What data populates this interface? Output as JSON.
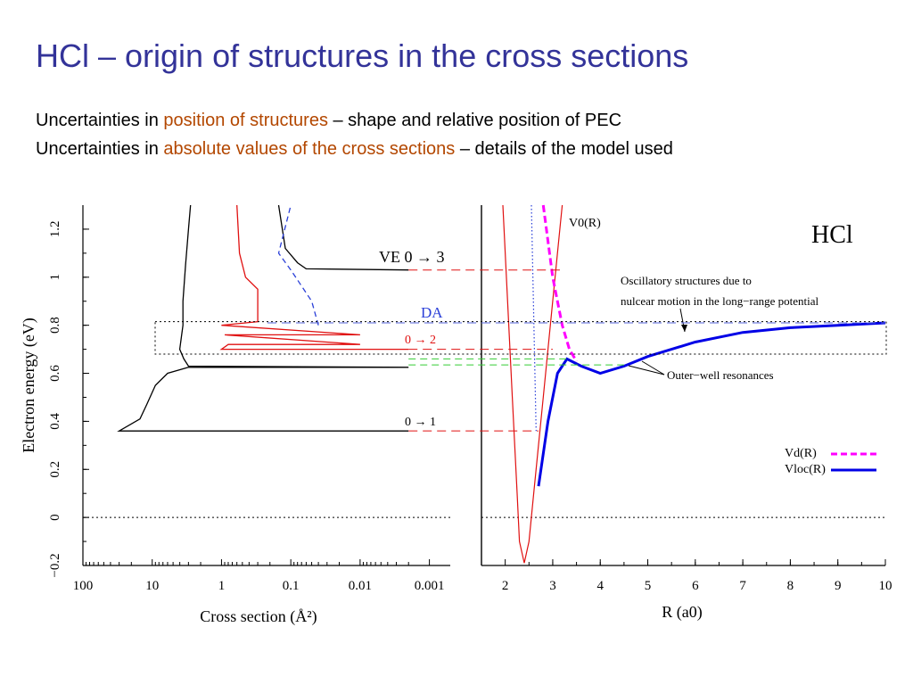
{
  "slide": {
    "title": "HCl – origin of structures in the cross sections",
    "line1": {
      "prefix": "Uncertainties in ",
      "highlight": "position of structures",
      "suffix": " – shape and relative position of PEC"
    },
    "line2": {
      "prefix": "Uncertainties in ",
      "highlight": "absolute values of the cross sections",
      "suffix": " – details of the model used"
    }
  },
  "colors": {
    "title": "#333399",
    "highlight": "#b34700",
    "red": "#e01010",
    "blue": "#0000e6",
    "dashed_blue": "#2a3fd8",
    "magenta": "#ff00ff",
    "green": "#33cc33",
    "black": "#000000"
  },
  "chart_data": [
    {
      "type": "line",
      "xlabel": "Cross section (Å²)",
      "ylabel": "Electron energy (eV)",
      "xscale": "log",
      "x_reversed": true,
      "xlim": [
        100,
        0.0005
      ],
      "ylim": [
        -0.2,
        1.3
      ],
      "xticks": [
        100,
        10,
        1,
        0.1,
        0.01,
        0.001
      ],
      "xtick_labels": [
        "100",
        "10",
        "1",
        "0.1",
        "0.01",
        "0.001"
      ],
      "yticks": [
        -0.2,
        0,
        0.2,
        0.4,
        0.6,
        0.8,
        1,
        1.2
      ],
      "ytick_labels": [
        "−0.2",
        "0",
        "0.2",
        "0.4",
        "0.6",
        "0.8",
        "1",
        "1.2"
      ],
      "series": [
        {
          "name": "VE 0 → 1",
          "color": "#000000",
          "style": "solid",
          "points": [
            [
              0.002,
              0.36
            ],
            [
              30,
              0.36
            ],
            [
              15,
              0.41
            ],
            [
              12,
              0.47
            ],
            [
              9,
              0.55
            ],
            [
              6,
              0.6
            ],
            [
              3,
              0.625
            ],
            [
              0.002,
              0.625
            ],
            [
              3,
              0.63
            ],
            [
              3.5,
              0.66
            ],
            [
              4,
              0.7
            ],
            [
              3.8,
              0.75
            ],
            [
              3.6,
              0.8
            ],
            [
              3.6,
              0.9
            ],
            [
              3.3,
              1.05
            ],
            [
              3.0,
              1.2
            ],
            [
              2.8,
              1.3
            ]
          ]
        },
        {
          "name": "VE 0 → 2",
          "color": "#e01010",
          "style": "solid",
          "points": [
            [
              0.002,
              0.7
            ],
            [
              1,
              0.7
            ],
            [
              0.8,
              0.72
            ],
            [
              0.01,
              0.72
            ],
            [
              0.9,
              0.76
            ],
            [
              0.01,
              0.76
            ],
            [
              1,
              0.8
            ],
            [
              0.3,
              0.815
            ],
            [
              0.3,
              0.95
            ],
            [
              0.45,
              1.0
            ],
            [
              0.55,
              1.1
            ],
            [
              0.6,
              1.3
            ]
          ]
        },
        {
          "name": "VE 0 → 3",
          "color": "#000000",
          "style": "solid",
          "points": [
            [
              0.002,
              1.03
            ],
            [
              0.06,
              1.035
            ],
            [
              0.08,
              1.06
            ],
            [
              0.12,
              1.12
            ],
            [
              0.15,
              1.3
            ]
          ]
        },
        {
          "name": "DA",
          "color": "#2a3fd8",
          "style": "dashed",
          "points": [
            [
              0.04,
              0.8
            ],
            [
              0.05,
              0.9
            ],
            [
              0.1,
              1.03
            ],
            [
              0.15,
              1.1
            ],
            [
              0.1,
              1.3
            ]
          ]
        }
      ],
      "annotations": [
        "VE 0 → 3",
        "DA",
        "0 → 2",
        "0 → 1"
      ]
    },
    {
      "type": "line",
      "xlabel": "R (a0)",
      "ylabel": "",
      "xlim": [
        1.5,
        10
      ],
      "ylim": [
        -0.2,
        1.3
      ],
      "xticks": [
        2,
        3,
        4,
        5,
        6,
        7,
        8,
        9,
        10
      ],
      "xtick_labels": [
        "2",
        "3",
        "4",
        "5",
        "6",
        "7",
        "8",
        "9",
        "10"
      ],
      "title": "HCl",
      "series": [
        {
          "name": "V0(R)",
          "color": "#e01010",
          "style": "solid",
          "points": [
            [
              1.95,
              1.3
            ],
            [
              2.05,
              0.9
            ],
            [
              2.15,
              0.5
            ],
            [
              2.25,
              0.1
            ],
            [
              2.3,
              -0.1
            ],
            [
              2.4,
              -0.19
            ],
            [
              2.5,
              -0.1
            ],
            [
              2.6,
              0.1
            ],
            [
              2.8,
              0.5
            ],
            [
              3.0,
              0.9
            ],
            [
              3.15,
              1.2
            ],
            [
              3.2,
              1.3
            ]
          ]
        },
        {
          "name": "Vd(R)",
          "color": "#ff00ff",
          "style": "dashed",
          "points": [
            [
              2.8,
              1.3
            ],
            [
              3.0,
              1.0
            ],
            [
              3.2,
              0.8
            ],
            [
              3.35,
              0.7
            ],
            [
              3.5,
              0.65
            ]
          ]
        },
        {
          "name": "Vloc(R)",
          "color": "#0000e6",
          "style": "solid",
          "points": [
            [
              2.7,
              0.13
            ],
            [
              2.9,
              0.4
            ],
            [
              3.1,
              0.6
            ],
            [
              3.3,
              0.66
            ],
            [
              3.6,
              0.63
            ],
            [
              4.0,
              0.6
            ],
            [
              4.5,
              0.63
            ],
            [
              5.0,
              0.67
            ],
            [
              6.0,
              0.73
            ],
            [
              7.0,
              0.77
            ],
            [
              8.0,
              0.79
            ],
            [
              9.0,
              0.8
            ],
            [
              10.0,
              0.81
            ]
          ]
        },
        {
          "name": "",
          "color": "#2a3fd8",
          "style": "dotted",
          "points": [
            [
              2.55,
              1.3
            ],
            [
              2.65,
              0.36
            ]
          ]
        }
      ],
      "annotations": [
        "V0(R)",
        "Oscillatory structures due to",
        "nulcear motion in the long−range potential",
        "Outer−well resonances",
        "Vd(R)",
        "Vloc(R)"
      ]
    }
  ]
}
